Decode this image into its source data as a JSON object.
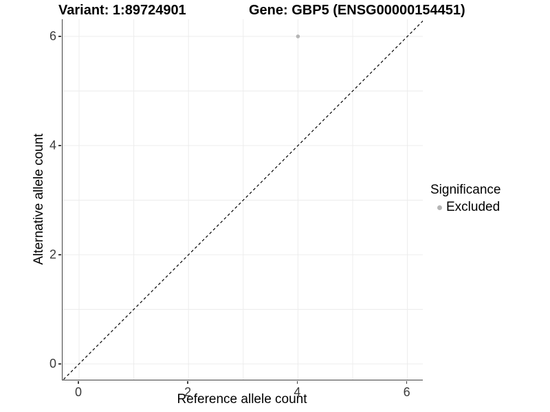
{
  "titles": {
    "variant": "Variant: 1:89724901",
    "gene": "Gene: GBP5 (ENSG00000154451)"
  },
  "chart_data": {
    "type": "scatter",
    "title_left": "Variant: 1:89724901",
    "title_right": "Gene: GBP5 (ENSG00000154451)",
    "xlabel": "Reference allele count",
    "ylabel": "Alternative allele count",
    "xlim": [
      -0.3,
      6.35
    ],
    "ylim": [
      -0.3,
      6.35
    ],
    "x_ticks": [
      0,
      2,
      4,
      6
    ],
    "y_ticks": [
      0,
      2,
      4,
      6
    ],
    "grid_values": [
      0,
      1,
      2,
      3,
      4,
      5,
      6
    ],
    "grid": "on",
    "grid_color": "#ececec",
    "series": [
      {
        "name": "Excluded",
        "color": "#b5b5b5",
        "points": [
          {
            "x": 4,
            "y": 6
          }
        ]
      }
    ],
    "reference_line": {
      "style": "dashed",
      "equation": "y = x",
      "color": "#000000",
      "x_range": [
        -0.35,
        6.45
      ],
      "y_range": [
        -0.35,
        6.45
      ]
    },
    "legend": {
      "position": "right",
      "title": "Significance",
      "items": [
        {
          "label": "Excluded",
          "color": "#b5b5b5",
          "marker": "circle"
        }
      ]
    }
  }
}
